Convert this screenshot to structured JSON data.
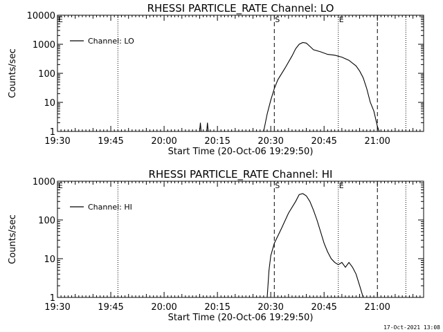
{
  "footer": {
    "timestamp": "17-Oct-2021 13:08"
  },
  "chart_data": [
    {
      "type": "line",
      "title": "RHESSI PARTICLE_RATE Channel: LO",
      "xlabel": "Start Time (20-Oct-06 19:29:50)",
      "ylabel": "Counts/sec",
      "scale": "log",
      "ylim": [
        1,
        10000
      ],
      "yticks": [
        {
          "value": 1,
          "label": "1"
        },
        {
          "value": 10,
          "label": "10"
        },
        {
          "value": 100,
          "label": "100"
        },
        {
          "value": 1000,
          "label": "1000"
        },
        {
          "value": 10000,
          "label": "10000"
        }
      ],
      "xlim": [
        "19:30",
        "21:13"
      ],
      "xticks": [
        "19:30",
        "19:45",
        "20:00",
        "20:15",
        "20:30",
        "20:45",
        "21:00"
      ],
      "legend": {
        "label": "Channel: LO",
        "position": "top-left"
      },
      "markers": [
        {
          "x": "20:31",
          "label": "S",
          "style": "dashed"
        },
        {
          "x": "20:49",
          "label": "E",
          "style": "dotted"
        },
        {
          "x": "21:00",
          "label": "",
          "style": "dashed"
        },
        {
          "x": "19:47",
          "label": "",
          "style": "dotted"
        },
        {
          "x": "21:08",
          "label": "",
          "style": "dotted"
        }
      ],
      "series": [
        {
          "name": "Channel: LO",
          "points": [
            [
              "19:30",
              1
            ],
            [
              "20:10",
              1
            ],
            [
              "20:10.2",
              2
            ],
            [
              "20:10.4",
              1
            ],
            [
              "20:12",
              1
            ],
            [
              "20:12.2",
              2
            ],
            [
              "20:12.4",
              1
            ],
            [
              "20:28",
              1
            ],
            [
              "20:29",
              4
            ],
            [
              "20:30",
              12
            ],
            [
              "20:31",
              30
            ],
            [
              "20:32",
              60
            ],
            [
              "20:34",
              150
            ],
            [
              "20:36",
              400
            ],
            [
              "20:37",
              700
            ],
            [
              "20:38",
              1000
            ],
            [
              "20:39",
              1150
            ],
            [
              "20:40",
              1100
            ],
            [
              "20:41",
              850
            ],
            [
              "20:42",
              650
            ],
            [
              "20:44",
              550
            ],
            [
              "20:46",
              450
            ],
            [
              "20:48",
              420
            ],
            [
              "20:50",
              360
            ],
            [
              "20:52",
              280
            ],
            [
              "20:54",
              180
            ],
            [
              "20:55",
              120
            ],
            [
              "20:56",
              70
            ],
            [
              "20:57",
              30
            ],
            [
              "20:58",
              10
            ],
            [
              "20:59",
              5
            ],
            [
              "21:00",
              1.5
            ],
            [
              "21:00.5",
              1
            ]
          ]
        }
      ]
    },
    {
      "type": "line",
      "title": "RHESSI PARTICLE_RATE Channel: HI",
      "xlabel": "Start Time (20-Oct-06 19:29:50)",
      "ylabel": "Counts/sec",
      "scale": "log",
      "ylim": [
        1,
        1000
      ],
      "yticks": [
        {
          "value": 1,
          "label": "1"
        },
        {
          "value": 10,
          "label": "10"
        },
        {
          "value": 100,
          "label": "100"
        },
        {
          "value": 1000,
          "label": "1000"
        }
      ],
      "xlim": [
        "19:30",
        "21:13"
      ],
      "xticks": [
        "19:30",
        "19:45",
        "20:00",
        "20:15",
        "20:30",
        "20:45",
        "21:00"
      ],
      "legend": {
        "label": "Channel: HI",
        "position": "top-left"
      },
      "markers": [
        {
          "x": "20:31",
          "label": "S",
          "style": "dashed"
        },
        {
          "x": "20:49",
          "label": "E",
          "style": "dotted"
        },
        {
          "x": "21:00",
          "label": "",
          "style": "dashed"
        },
        {
          "x": "19:47",
          "label": "",
          "style": "dotted"
        },
        {
          "x": "21:08",
          "label": "",
          "style": "dotted"
        }
      ],
      "series": [
        {
          "name": "Channel: HI",
          "points": [
            [
              "20:29",
              1
            ],
            [
              "20:29.5",
              5
            ],
            [
              "20:30",
              12
            ],
            [
              "20:31",
              25
            ],
            [
              "20:33",
              60
            ],
            [
              "20:35",
              150
            ],
            [
              "20:37",
              300
            ],
            [
              "20:38",
              450
            ],
            [
              "20:39",
              480
            ],
            [
              "20:40",
              420
            ],
            [
              "20:41",
              300
            ],
            [
              "20:42",
              180
            ],
            [
              "20:43",
              100
            ],
            [
              "20:44",
              50
            ],
            [
              "20:45",
              25
            ],
            [
              "20:46",
              15
            ],
            [
              "20:47",
              10
            ],
            [
              "20:48",
              8
            ],
            [
              "20:49",
              7
            ],
            [
              "20:50",
              8
            ],
            [
              "20:51",
              6
            ],
            [
              "20:52",
              8
            ],
            [
              "20:53",
              6
            ],
            [
              "20:54",
              4
            ],
            [
              "20:55",
              2
            ],
            [
              "20:56",
              1
            ]
          ]
        }
      ]
    }
  ]
}
